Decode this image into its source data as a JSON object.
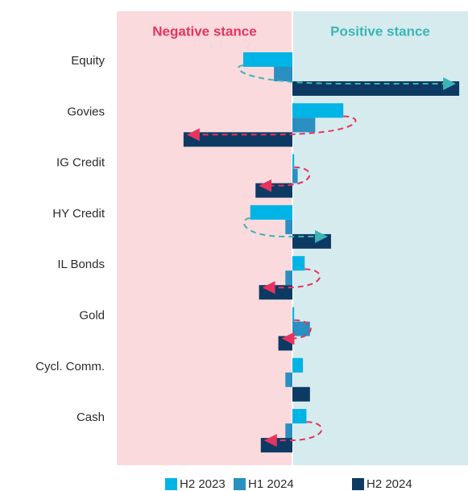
{
  "chart_data": {
    "type": "bar",
    "orientation": "horizontal",
    "annotations": [
      {
        "text": "Negative stance",
        "color": "#e8335e",
        "background": "#fadadd"
      },
      {
        "text": "Positive stance",
        "color": "#3bb5b5",
        "background": "#d6ebee"
      }
    ],
    "categories": [
      "Equity",
      "Govies",
      "IG Credit",
      "HY Credit",
      "IL Bonds",
      "Gold",
      "Cycl. Comm.",
      "Cash"
    ],
    "series": [
      {
        "name": "H2 2023",
        "color": "#00b4e6",
        "values": [
          -2.8,
          2.9,
          0.1,
          -2.4,
          0.7,
          0.1,
          0.6,
          0.8
        ]
      },
      {
        "name": "H1 2024",
        "color": "#2a8fc1",
        "values": [
          -1.05,
          1.3,
          0.3,
          -0.4,
          -0.4,
          1.0,
          -0.4,
          -0.4
        ]
      },
      {
        "name": "H2 2024",
        "color": "#0d3a63",
        "values": [
          9.5,
          -6.2,
          -2.1,
          2.2,
          -1.9,
          -0.8,
          1.0,
          -1.8
        ]
      }
    ],
    "xlim": [
      -10,
      10
    ]
  }
}
